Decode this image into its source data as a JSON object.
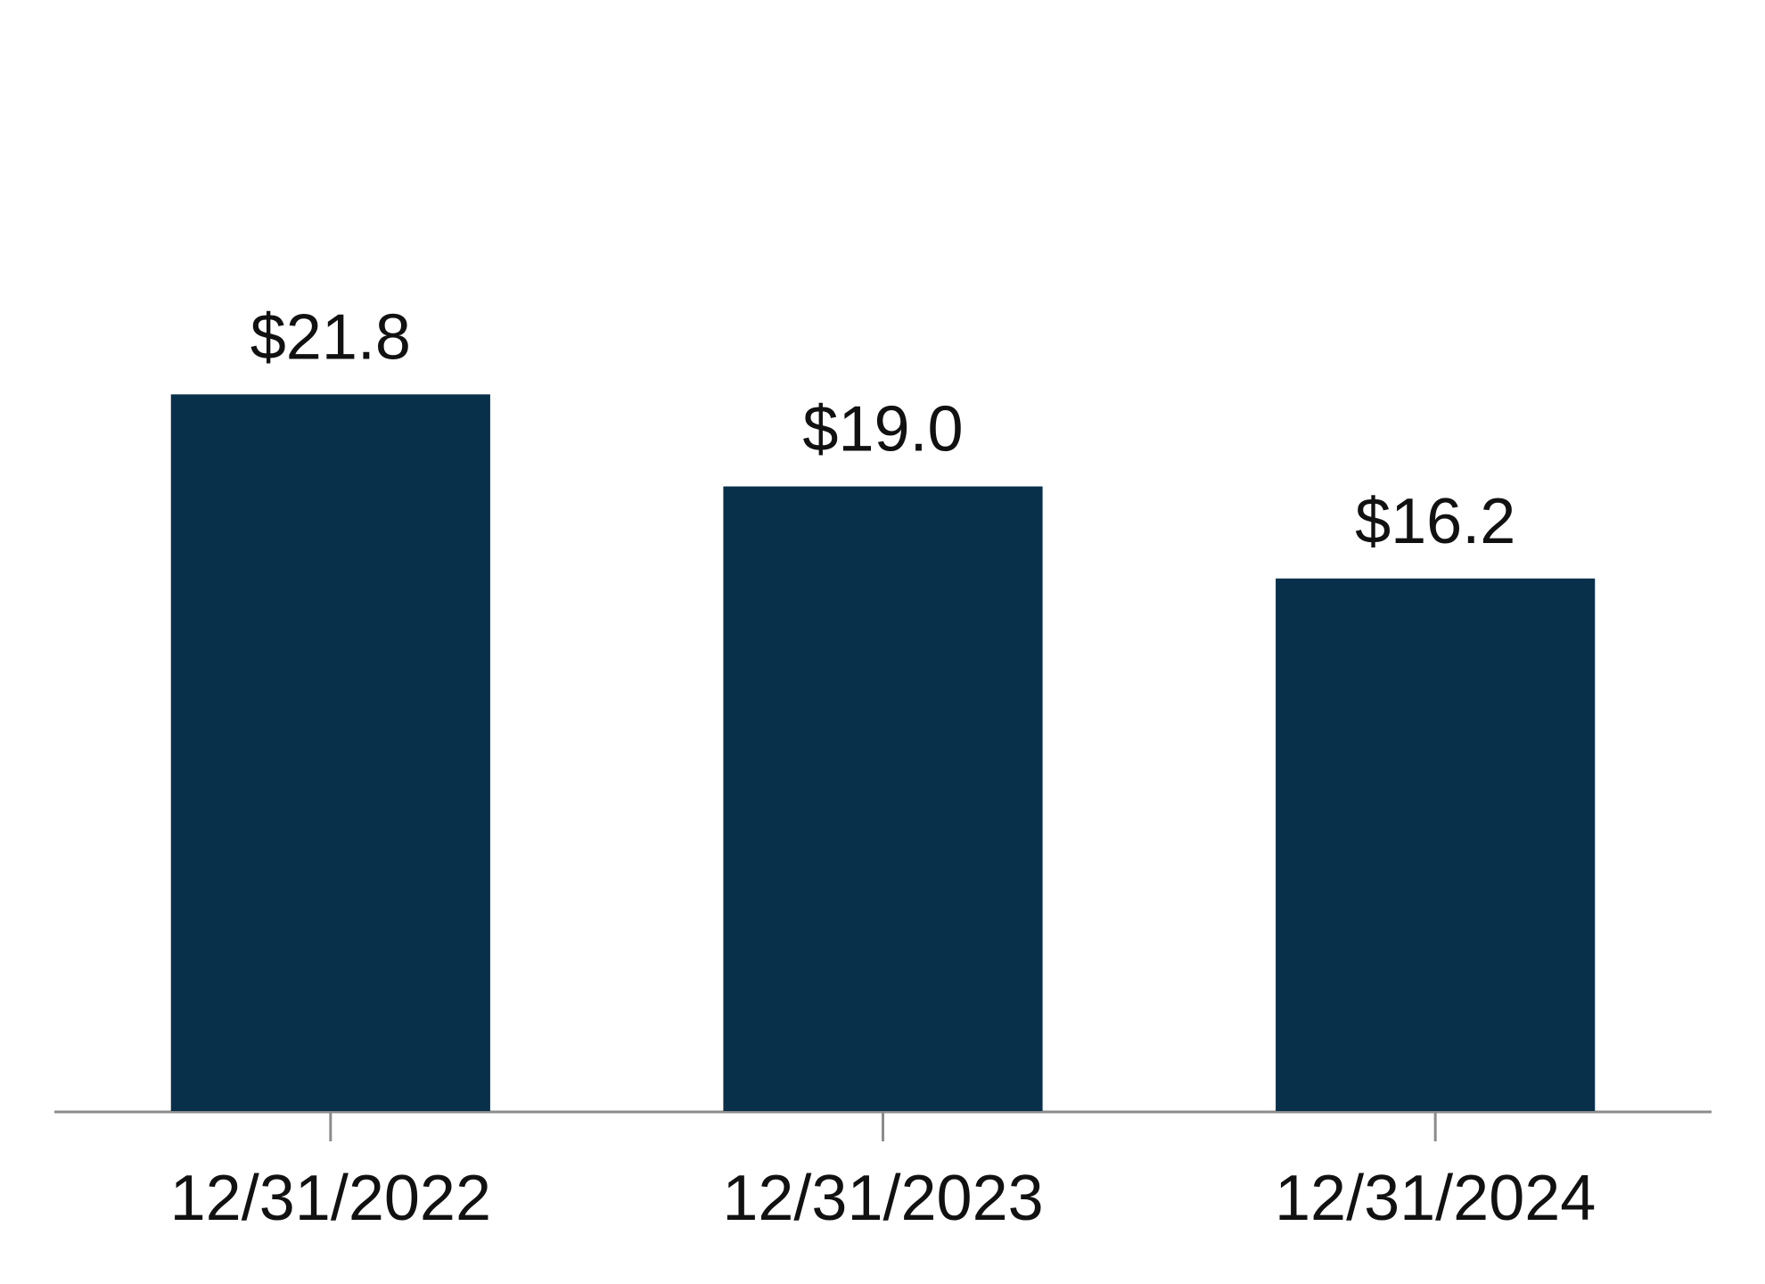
{
  "chart_data": {
    "type": "bar",
    "categories": [
      "12/31/2022",
      "12/31/2023",
      "12/31/2024"
    ],
    "values": [
      21.8,
      19.0,
      16.2
    ],
    "value_labels": [
      "$21.8",
      "$19.0",
      "$16.2"
    ],
    "color": "#08304b",
    "ylim": [
      0,
      30
    ]
  }
}
